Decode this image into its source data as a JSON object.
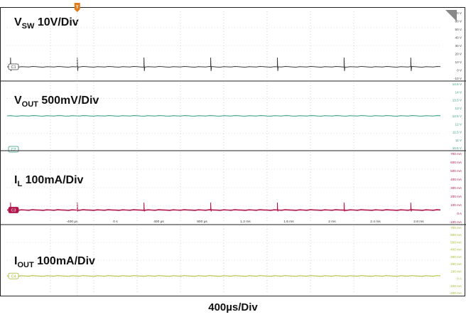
{
  "time_scale": "400µs/Div",
  "chart_data": [
    {
      "type": "line",
      "channel": "C1",
      "label_main": "V",
      "label_sub": "SW",
      "label_rest": " 10V/Div",
      "color": "#3a3a3a",
      "y_unit": "V",
      "ylim": [
        -10,
        70
      ],
      "tick_labels": [
        "70 V",
        "60 V",
        "50 V",
        "40 V",
        "30 V",
        "20 V",
        "10 V",
        "0 V",
        "-10 V"
      ],
      "baseline": 0,
      "spike_peak": 13,
      "spike_times_ms": [
        -0.57,
        0.015,
        0.6,
        1.185,
        1.77,
        2.355,
        2.94
      ],
      "marker": "C1"
    },
    {
      "type": "line",
      "channel": "C2",
      "label_main": "V",
      "label_sub": "OUT",
      "label_rest": " 500mV/Div",
      "color": "#2e9a7f",
      "y_unit": "V",
      "ylim": [
        10.5,
        14.5
      ],
      "tick_labels": [
        "14.5 V",
        "14 V",
        "13.5 V",
        "13 V",
        "12.5 V",
        "12 V",
        "11.5 V",
        "11 V",
        "10.5 V"
      ],
      "baseline": 12.5,
      "marker": "C2"
    },
    {
      "type": "line",
      "channel": "C3",
      "label_main": "I",
      "label_sub": "L",
      "label_rest": " 100mA/Div",
      "color": "#b0154a",
      "y_unit": "mA",
      "ylim": [
        -100,
        700
      ],
      "tick_labels": [
        "700 mA",
        "600 mA",
        "500 mA",
        "400 mA",
        "300 mA",
        "200 mA",
        "100 mA",
        "0 A",
        "-100 mA"
      ],
      "baseline": 0,
      "spike_peak": 100,
      "spike_times_ms": [
        -0.57,
        0.015,
        0.6,
        1.185,
        1.77,
        2.355,
        2.94
      ],
      "marker": "C3",
      "x_ticks": [
        "-400 µs",
        "0 s",
        "400 µs",
        "800 µs",
        "1.2 ms",
        "1.6 ms",
        "2 ms",
        "2.4 ms",
        "2.8 ms"
      ]
    },
    {
      "type": "line",
      "channel": "C4",
      "label_main": "I",
      "label_sub": "OUT",
      "label_rest": " 100mA/Div",
      "color": "#a9b92c",
      "y_unit": "mA",
      "ylim": [
        -200,
        700
      ],
      "tick_labels": [
        "700 mA",
        "600 mA",
        "500 mA",
        "400 mA",
        "300 mA",
        "200 mA",
        "100 mA",
        "0 A",
        "-100 mA",
        "-200 mA"
      ],
      "baseline": 0,
      "marker": "C4"
    }
  ],
  "trigger_label": "T"
}
